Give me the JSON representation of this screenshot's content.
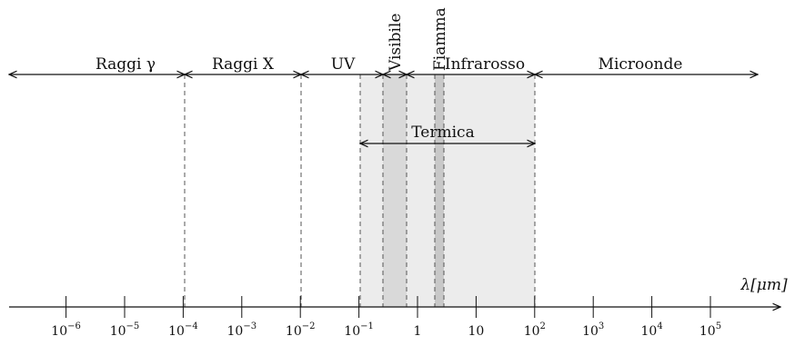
{
  "axis": {
    "label": "λ[μm]",
    "ticks": [
      {
        "exp": -6,
        "text": "10",
        "sup": "−6"
      },
      {
        "exp": -5,
        "text": "10",
        "sup": "−5"
      },
      {
        "exp": -4,
        "text": "10",
        "sup": "−4"
      },
      {
        "exp": -3,
        "text": "10",
        "sup": "−3"
      },
      {
        "exp": -2,
        "text": "10",
        "sup": "−2"
      },
      {
        "exp": -1,
        "text": "10",
        "sup": "−1"
      },
      {
        "exp": 0,
        "text": "1",
        "sup": ""
      },
      {
        "exp": 1,
        "text": "10",
        "sup": ""
      },
      {
        "exp": 2,
        "text": "10",
        "sup": "2"
      },
      {
        "exp": 3,
        "text": "10",
        "sup": "3"
      },
      {
        "exp": 4,
        "text": "10",
        "sup": "4"
      },
      {
        "exp": 5,
        "text": "10",
        "sup": "5"
      }
    ]
  },
  "regions": [
    {
      "label": "Raggi γ"
    },
    {
      "label": "Raggi X"
    },
    {
      "label": "UV"
    },
    {
      "label": "Visibile"
    },
    {
      "label": "Fiamma"
    },
    {
      "label": "Infrarosso"
    },
    {
      "label": "Microonde"
    }
  ],
  "thermal": {
    "label": "Termica"
  },
  "colors": {
    "thermal_band": "#ececec",
    "visible_band": "#d9d9d9",
    "flame_band": "#c8c8c8",
    "line": "#111111",
    "dash": "#555555"
  }
}
